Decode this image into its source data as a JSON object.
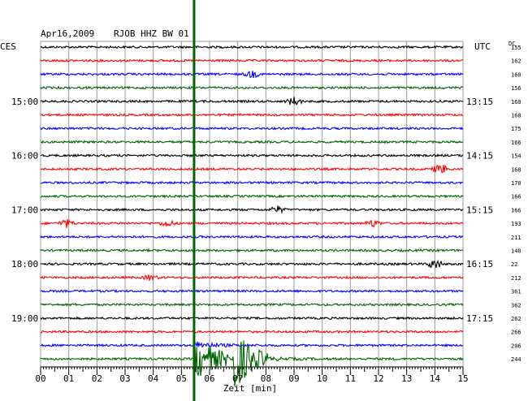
{
  "header": {
    "date": "Apr16,2009",
    "station": "RJOB HHZ BW 01",
    "left_tz": "CES",
    "right_tz": "UTC",
    "dc_label": "DC"
  },
  "chart_data": {
    "type": "line",
    "title": "Apr16,2009  RJOB HHZ BW 01",
    "xlabel": "Zeit [min]",
    "x_ticks": [
      "00",
      "01",
      "02",
      "03",
      "04",
      "05",
      "06",
      "07",
      "08",
      "09",
      "10",
      "11",
      "12",
      "13",
      "14",
      "15"
    ],
    "xlim": [
      0,
      15
    ],
    "grid": true,
    "left_hour_labels": [
      {
        "label": "15:00",
        "row": 4
      },
      {
        "label": "16:00",
        "row": 8
      },
      {
        "label": "17:00",
        "row": 12
      },
      {
        "label": "18:00",
        "row": 16
      },
      {
        "label": "19:00",
        "row": 20
      }
    ],
    "right_hour_labels": [
      {
        "label": "13:15",
        "row": 4
      },
      {
        "label": "14:15",
        "row": 8
      },
      {
        "label": "15:15",
        "row": 12
      },
      {
        "label": "16:15",
        "row": 16
      },
      {
        "label": "17:15",
        "row": 20
      }
    ],
    "trace_colors": [
      "#000000",
      "#ff0000",
      "#0000ff",
      "#006400"
    ],
    "dc_offsets": [
      "155",
      "162",
      "160",
      "156",
      "160",
      "168",
      "175",
      "166",
      "154",
      "168",
      "170",
      "166",
      "166",
      "193",
      "211",
      "140",
      "22",
      "212",
      "361",
      "362",
      "262",
      "266",
      "206",
      "244"
    ],
    "event": {
      "time_min": 5.45,
      "color": "#006400"
    },
    "bursts": [
      {
        "row": 2,
        "minute": 7.5,
        "amp": 4
      },
      {
        "row": 4,
        "minute": 9.0,
        "amp": 5
      },
      {
        "row": 9,
        "minute": 14.2,
        "amp": 6
      },
      {
        "row": 12,
        "minute": 8.4,
        "amp": 4
      },
      {
        "row": 13,
        "minute": 0.9,
        "amp": 5
      },
      {
        "row": 13,
        "minute": 4.5,
        "amp": 4
      },
      {
        "row": 13,
        "minute": 11.8,
        "amp": 4
      },
      {
        "row": 16,
        "minute": 14.0,
        "amp": 6
      },
      {
        "row": 17,
        "minute": 3.9,
        "amp": 3
      }
    ]
  }
}
